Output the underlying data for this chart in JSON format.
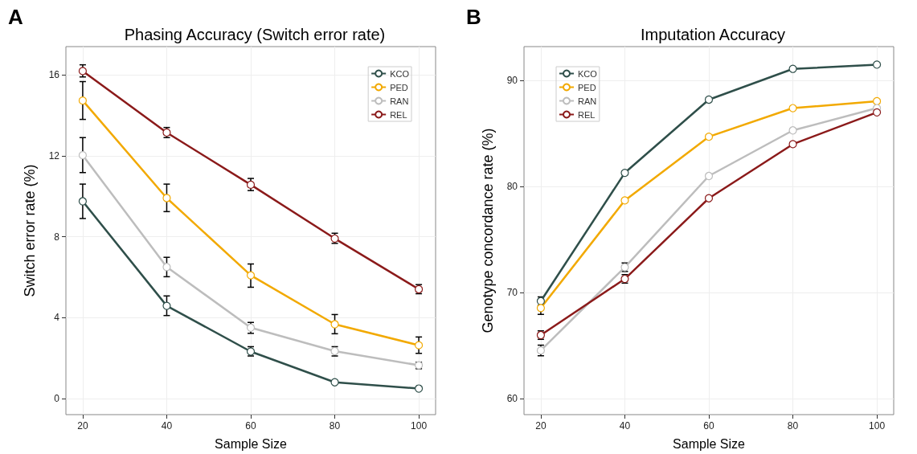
{
  "chart_data": [
    {
      "type": "line",
      "title": "Phasing Accuracy (Switch error rate)",
      "xlabel": "Sample Size",
      "ylabel": "Switch error rate (%)",
      "annotations": [
        "A"
      ],
      "x": [
        20,
        40,
        60,
        80,
        100
      ],
      "xlim": [
        16,
        104
      ],
      "xticks": [
        20,
        40,
        60,
        80,
        100
      ],
      "ylim": [
        -0.8,
        17.4
      ],
      "yticks": [
        0,
        4,
        8,
        12,
        16
      ],
      "grid": true,
      "legend": "top right",
      "marker": "circle",
      "line_style": "solid",
      "series": [
        {
          "name": "KCO",
          "color": "#2f4f4a",
          "values": [
            9.75,
            4.58,
            2.32,
            0.8,
            0.49
          ],
          "errors": [
            [
              8.9,
              10.6
            ],
            [
              4.1,
              5.07
            ],
            [
              2.1,
              2.56
            ],
            null,
            null
          ]
        },
        {
          "name": "PED",
          "color": "#f2a900",
          "values": [
            14.73,
            9.91,
            6.09,
            3.67,
            2.63
          ],
          "errors": [
            [
              13.8,
              15.67
            ],
            [
              9.24,
              10.6
            ],
            [
              5.5,
              6.65
            ],
            [
              3.2,
              4.15
            ],
            [
              2.23,
              3.04
            ]
          ]
        },
        {
          "name": "RAN",
          "color": "#bdbdbd",
          "values": [
            12.03,
            6.5,
            3.5,
            2.34,
            1.64
          ],
          "errors": [
            [
              11.17,
              12.9
            ],
            [
              6.02,
              6.98
            ],
            [
              3.22,
              3.76
            ],
            [
              2.1,
              2.56
            ],
            [
              1.47,
              1.79
            ]
          ]
        },
        {
          "name": "REL",
          "color": "#8b1a1a",
          "values": [
            16.19,
            13.15,
            10.57,
            7.91,
            5.4
          ],
          "errors": [
            [
              15.9,
              16.5
            ],
            [
              12.9,
              13.4
            ],
            [
              10.28,
              10.88
            ],
            [
              7.67,
              8.17
            ],
            [
              5.18,
              5.63
            ]
          ]
        }
      ]
    },
    {
      "type": "line",
      "title": "Imputation Accuracy",
      "xlabel": "Sample Size",
      "ylabel": "Genotype concordance rate (%)",
      "annotations": [
        "B"
      ],
      "x": [
        20,
        40,
        60,
        80,
        100
      ],
      "xlim": [
        16,
        104
      ],
      "xticks": [
        20,
        40,
        60,
        80,
        100
      ],
      "ylim": [
        58.5,
        93.2
      ],
      "yticks": [
        60,
        70,
        80,
        90
      ],
      "grid": true,
      "legend": "top left",
      "marker": "circle",
      "line_style": "solid",
      "series": [
        {
          "name": "KCO",
          "color": "#2f4f4a",
          "values": [
            69.2,
            81.3,
            88.2,
            91.1,
            91.5
          ],
          "errors": [
            0.4,
            null,
            null,
            null,
            null
          ]
        },
        {
          "name": "PED",
          "color": "#f2a900",
          "values": [
            68.55,
            78.7,
            84.7,
            87.4,
            88.05
          ],
          "errors": [
            0.6,
            null,
            null,
            null,
            null
          ]
        },
        {
          "name": "RAN",
          "color": "#bdbdbd",
          "values": [
            64.55,
            72.4,
            81.0,
            85.3,
            87.4
          ],
          "errors": [
            0.5,
            0.4,
            null,
            null,
            null
          ]
        },
        {
          "name": "REL",
          "color": "#8b1a1a",
          "values": [
            66.0,
            71.3,
            78.9,
            84.0,
            87.0
          ],
          "errors": [
            0.4,
            0.4,
            null,
            null,
            null
          ]
        }
      ]
    }
  ]
}
